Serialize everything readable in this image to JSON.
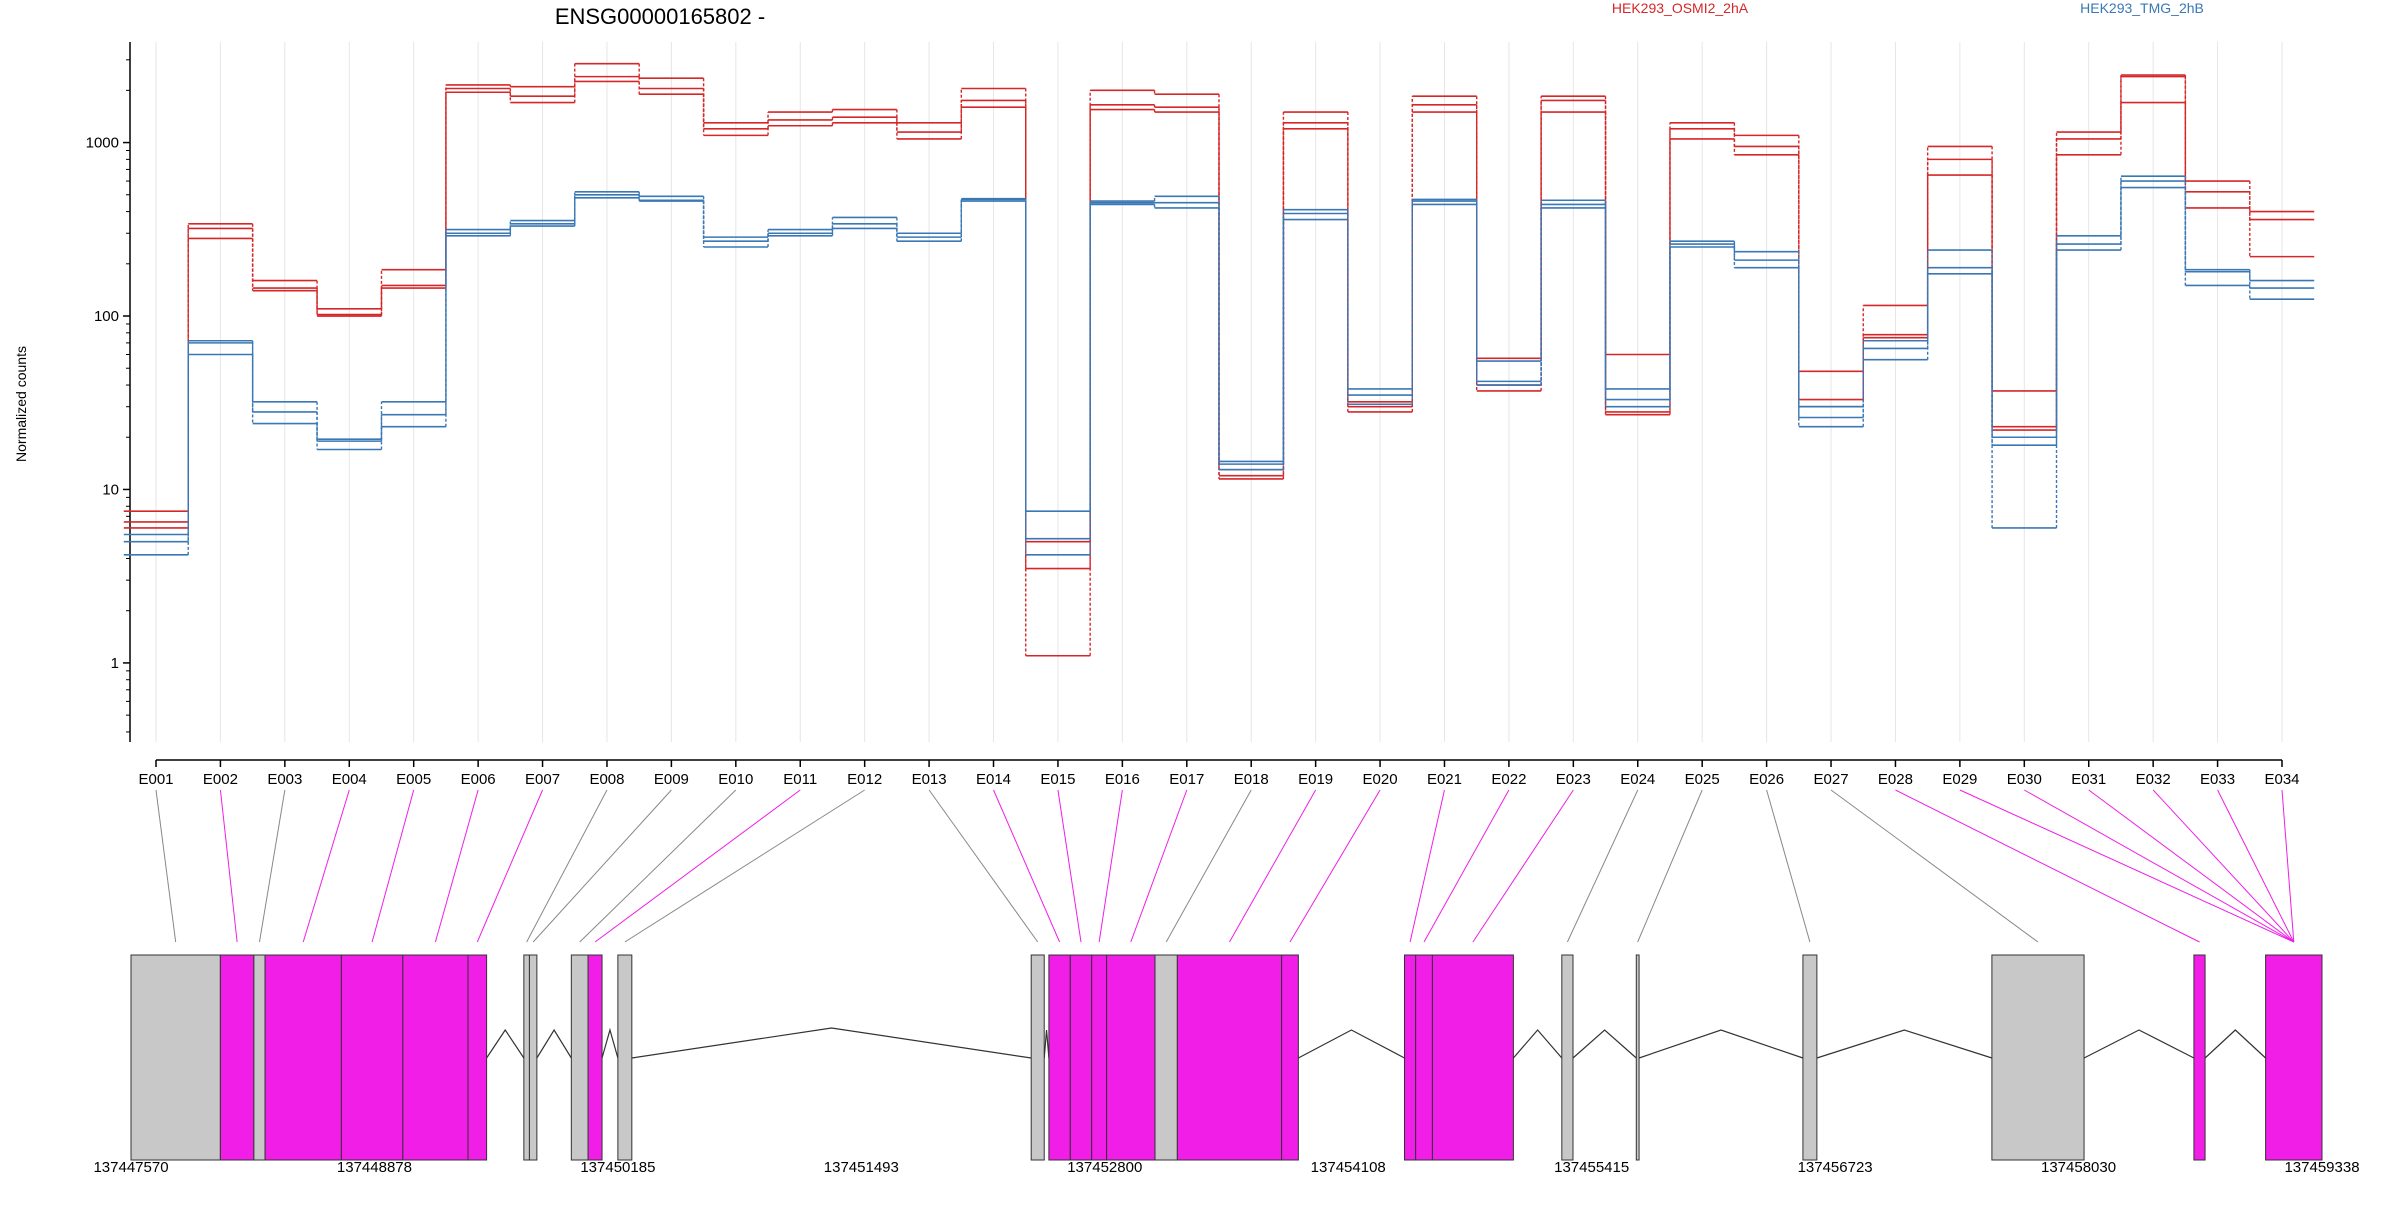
{
  "colors": {
    "cond_a": "#d62728",
    "cond_b": "#3a78b5",
    "exonic": "#f01ee6",
    "other": "#c8c8c8"
  },
  "chart_data": {
    "type": "line",
    "title": "ENSG00000165802 -",
    "ylabel": "Normalized counts",
    "yscale": "log",
    "ylim": [
      0.35,
      3800
    ],
    "yticks": [
      1,
      10,
      100,
      1000
    ],
    "grid": "vertical",
    "legend": [
      {
        "name": "HEK293_OSMI2_2hA",
        "color": "#d62728"
      },
      {
        "name": "HEK293_TMG_2hB",
        "color": "#3a78b5"
      }
    ],
    "categories": [
      "E001",
      "E002",
      "E003",
      "E004",
      "E005",
      "E006",
      "E007",
      "E008",
      "E009",
      "E010",
      "E011",
      "E012",
      "E013",
      "E014",
      "E015",
      "E016",
      "E017",
      "E018",
      "E019",
      "E020",
      "E021",
      "E022",
      "E023",
      "E024",
      "E025",
      "E026",
      "E027",
      "E028",
      "E029",
      "E030",
      "E031",
      "E032",
      "E033",
      "E034"
    ],
    "series": [
      {
        "group": "HEK293_OSMI2_2hA",
        "values": [
          6.5,
          280,
          140,
          100,
          145,
          1950,
          1700,
          2250,
          1900,
          1100,
          1250,
          1300,
          1050,
          1600,
          5,
          1550,
          1500,
          11.5,
          1200,
          28,
          1500,
          37,
          1500,
          27,
          1050,
          850,
          33,
          75,
          650,
          22,
          850,
          1700,
          420,
          220
        ]
      },
      {
        "group": "HEK293_OSMI2_2hA",
        "values": [
          7.5,
          320,
          160,
          110,
          185,
          2050,
          1850,
          2400,
          2050,
          1200,
          1350,
          1400,
          1150,
          1750,
          3.5,
          1650,
          1600,
          12,
          1300,
          30,
          1650,
          40,
          1750,
          28,
          1200,
          950,
          30,
          78,
          800,
          23,
          1050,
          2400,
          520,
          360
        ]
      },
      {
        "group": "HEK293_OSMI2_2hA",
        "values": [
          6,
          340,
          145,
          102,
          150,
          2150,
          2100,
          2850,
          2350,
          1300,
          1500,
          1550,
          1300,
          2050,
          1.1,
          2000,
          1900,
          13,
          1500,
          32,
          1850,
          57,
          1850,
          60,
          1300,
          1100,
          48,
          115,
          950,
          37,
          1150,
          2450,
          600,
          400
        ]
      },
      {
        "group": "HEK293_TMG_2hB",
        "values": [
          4.2,
          60,
          24,
          17,
          23,
          290,
          330,
          480,
          460,
          250,
          290,
          320,
          270,
          460,
          5.2,
          440,
          420,
          13,
          360,
          31,
          440,
          40,
          420,
          30,
          250,
          190,
          23,
          56,
          175,
          18,
          240,
          550,
          150,
          125
        ]
      },
      {
        "group": "HEK293_TMG_2hB",
        "values": [
          5,
          70,
          28,
          19,
          27,
          300,
          340,
          500,
          465,
          270,
          300,
          340,
          285,
          470,
          4.2,
          450,
          450,
          14,
          390,
          35,
          460,
          42,
          440,
          33,
          260,
          210,
          26,
          65,
          190,
          20,
          260,
          600,
          180,
          145
        ]
      },
      {
        "group": "HEK293_TMG_2hB",
        "values": [
          5.5,
          72,
          32,
          19.5,
          32,
          315,
          355,
          520,
          490,
          285,
          315,
          370,
          300,
          475,
          7.5,
          460,
          490,
          14.5,
          410,
          38,
          470,
          55,
          465,
          38,
          270,
          235,
          30,
          72,
          240,
          6,
          290,
          640,
          185,
          160
        ]
      }
    ],
    "xaxis_positions": [
      "137447570",
      "137448878",
      "137450185",
      "137451493",
      "137452800",
      "137454108",
      "137455415",
      "137456723",
      "137458030",
      "137459338"
    ],
    "gene_model": {
      "range": [
        137447570,
        137459338
      ],
      "exons": [
        {
          "start": 137447570,
          "end": 137448050,
          "type": "other"
        },
        {
          "start": 137448050,
          "end": 137448230,
          "type": "exonic"
        },
        {
          "start": 137448230,
          "end": 137448290,
          "type": "other"
        },
        {
          "start": 137448290,
          "end": 137448700,
          "type": "exonic"
        },
        {
          "start": 137448700,
          "end": 137449030,
          "type": "exonic"
        },
        {
          "start": 137449030,
          "end": 137449380,
          "type": "exonic"
        },
        {
          "start": 137449380,
          "end": 137449480,
          "type": "exonic"
        },
        {
          "start": 137449680,
          "end": 137449710,
          "type": "other"
        },
        {
          "start": 137449710,
          "end": 137449750,
          "type": "other"
        },
        {
          "start": 137449935,
          "end": 137450025,
          "type": "other"
        },
        {
          "start": 137450025,
          "end": 137450100,
          "type": "exonic"
        },
        {
          "start": 137450185,
          "end": 137450260,
          "type": "other"
        },
        {
          "start": 137452405,
          "end": 137452475,
          "type": "other"
        },
        {
          "start": 137452500,
          "end": 137452615,
          "type": "exonic"
        },
        {
          "start": 137452615,
          "end": 137452730,
          "type": "exonic"
        },
        {
          "start": 137452730,
          "end": 137452810,
          "type": "exonic"
        },
        {
          "start": 137452810,
          "end": 137453070,
          "type": "exonic"
        },
        {
          "start": 137453070,
          "end": 137453190,
          "type": "other"
        },
        {
          "start": 137453190,
          "end": 137453750,
          "type": "exonic"
        },
        {
          "start": 137453750,
          "end": 137453840,
          "type": "exonic"
        },
        {
          "start": 137454410,
          "end": 137454470,
          "type": "exonic"
        },
        {
          "start": 137454470,
          "end": 137454560,
          "type": "exonic"
        },
        {
          "start": 137454560,
          "end": 137454995,
          "type": "exonic"
        },
        {
          "start": 137455255,
          "end": 137455315,
          "type": "other"
        },
        {
          "start": 137455655,
          "end": 137455670,
          "type": "other"
        },
        {
          "start": 137456550,
          "end": 137456625,
          "type": "other"
        },
        {
          "start": 137457565,
          "end": 137458060,
          "type": "other"
        },
        {
          "start": 137458650,
          "end": 137458710,
          "type": "exonic"
        },
        {
          "start": 137459035,
          "end": 137459338,
          "type": "exonic"
        }
      ]
    }
  }
}
